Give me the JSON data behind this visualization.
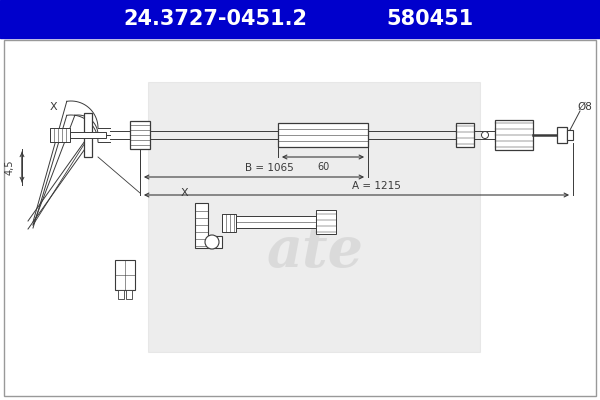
{
  "title_part_number": "24.3727-0451.2",
  "title_ref_number": "580451",
  "header_bg_color": "#0000CC",
  "header_text_color": "#FFFFFF",
  "bg_color": "#FFFFFF",
  "border_color": "#888888",
  "drawing_color": "#3a3a3a",
  "watermark_color": "#CCCCCC",
  "dim_B": "B = 1065",
  "dim_60": "60",
  "dim_A": "A = 1215",
  "dim_diam": "Ø8",
  "dim_45": "4,5",
  "label_X": "X"
}
